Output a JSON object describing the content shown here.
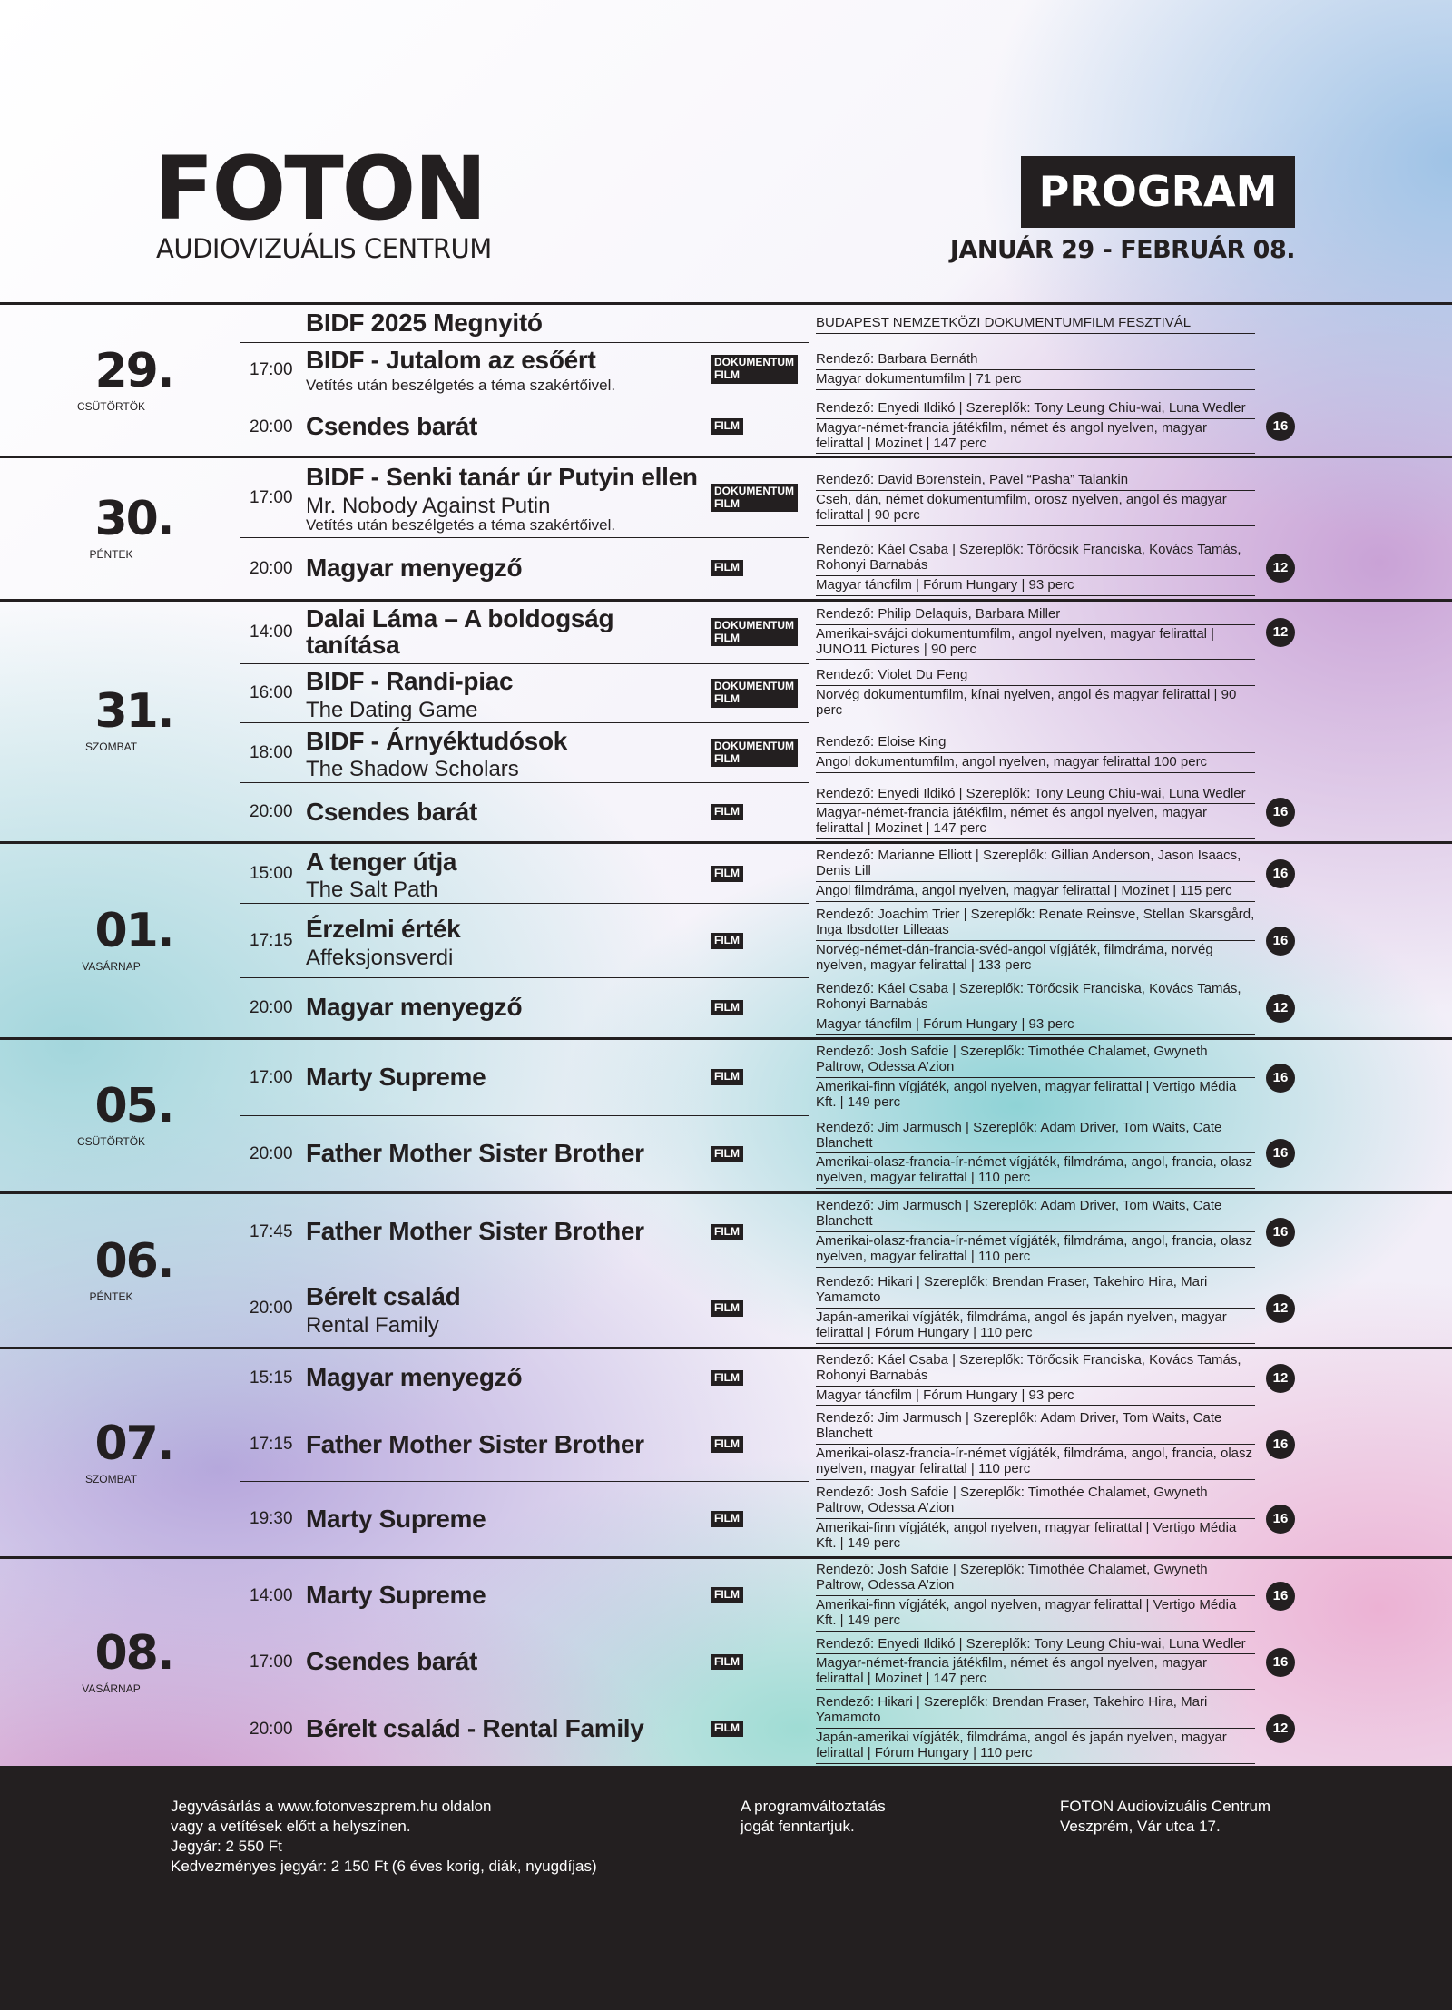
{
  "header": {
    "logo": "FOTON",
    "subtitle": "AUDIOVIZUÁLIS CENTRUM",
    "badge": "PROGRAM",
    "dates": "JANUÁR 29 - FEBRUÁR 08."
  },
  "days": [
    {
      "date": "29.",
      "weekday": "CSÜTÖRTÖK",
      "screenings": [
        {
          "title": "BIDF 2025 Megnyitó",
          "info": [
            "BUDAPEST NEMZETKÖZI DOKUMENTUMFILM FESZTIVÁL"
          ]
        },
        {
          "time": "17:00",
          "title": "BIDF - Jutalom az esőért",
          "note": "Vetítés után beszélgetés a téma szakértőivel.",
          "type": "DOKUMENTUM FILM",
          "info": [
            "Rendező: Barbara Bernáth",
            "Magyar dokumentumfilm | 71 perc"
          ]
        },
        {
          "time": "20:00",
          "title": "Csendes barát",
          "type": "FILM",
          "info": [
            "Rendező: Enyedi Ildikó | Szereplők: Tony Leung Chiu-wai, Luna Wedler",
            "Magyar-német-francia játékfilm, német és angol nyelven, magyar felirattal | Mozinet | 147 perc"
          ],
          "rating": "16"
        }
      ]
    },
    {
      "date": "30.",
      "weekday": "PÉNTEK",
      "screenings": [
        {
          "time": "17:00",
          "title": "BIDF - Senki tanár úr Putyin ellen",
          "subtitle": "Mr. Nobody Against Putin",
          "note": "Vetítés után beszélgetés a téma szakértőivel.",
          "type": "DOKUMENTUM FILM",
          "info": [
            "Rendező: David Borenstein, Pavel “Pasha” Talankin",
            "Cseh, dán, német dokumentumfilm, orosz nyelven, angol és magyar felirattal | 90 perc"
          ]
        },
        {
          "time": "20:00",
          "title": "Magyar menyegző",
          "type": "FILM",
          "info": [
            "Rendező: Káel Csaba | Szereplők: Törőcsik Franciska, Kovács Tamás, Rohonyi Barnabás",
            "Magyar táncfilm | Fórum Hungary | 93 perc"
          ],
          "rating": "12"
        }
      ]
    },
    {
      "date": "31.",
      "weekday": "SZOMBAT",
      "screenings": [
        {
          "time": "14:00",
          "title": "Dalai Láma – A boldogság tanítása",
          "type": "DOKUMENTUM FILM",
          "info": [
            "Rendező: Philip Delaquis, Barbara Miller",
            "Amerikai-svájci dokumentumfilm, angol nyelven, magyar felirattal | JUNO11 Pictures | 90 perc"
          ],
          "rating": "12"
        },
        {
          "time": "16:00",
          "title": "BIDF - Randi-piac",
          "subtitle": "The Dating Game",
          "type": "DOKUMENTUM FILM",
          "info": [
            "Rendező: Violet Du Feng",
            "Norvég dokumentumfilm, kínai nyelven, angol és magyar felirattal | 90 perc"
          ]
        },
        {
          "time": "18:00",
          "title": "BIDF - Árnyéktudósok",
          "subtitle": "The Shadow Scholars",
          "type": "DOKUMENTUM FILM",
          "info": [
            "Rendező: Eloise King",
            "Angol dokumentumfilm, angol nyelven, magyar felirattal 100 perc"
          ]
        },
        {
          "time": "20:00",
          "title": "Csendes barát",
          "type": "FILM",
          "info": [
            "Rendező: Enyedi Ildikó | Szereplők: Tony Leung Chiu-wai, Luna Wedler",
            "Magyar-német-francia játékfilm, német és angol nyelven, magyar felirattal | Mozinet | 147 perc"
          ],
          "rating": "16"
        }
      ]
    },
    {
      "date": "01.",
      "weekday": "VASÁRNAP",
      "screenings": [
        {
          "time": "15:00",
          "title": "A tenger útja",
          "subtitle": "The Salt Path",
          "type": "FILM",
          "info": [
            "Rendező: Marianne Elliott | Szereplők: Gillian Anderson, Jason Isaacs, Denis Lill",
            "Angol filmdráma, angol nyelven, magyar felirattal | Mozinet | 115 perc"
          ],
          "rating": "16"
        },
        {
          "time": "17:15",
          "title": "Érzelmi érték",
          "subtitle": "Affeksjonsverdi",
          "type": "FILM",
          "info": [
            "Rendező: Joachim Trier | Szereplők: Renate Reinsve, Stellan Skarsgård, Inga Ibsdotter Lilleaas",
            "Norvég-német-dán-francia-svéd-angol vígjáték, filmdráma, norvég nyelven, magyar felirattal | 133 perc"
          ],
          "rating": "16"
        },
        {
          "time": "20:00",
          "title": "Magyar menyegző",
          "type": "FILM",
          "info": [
            "Rendező: Káel Csaba | Szereplők: Törőcsik Franciska, Kovács Tamás, Rohonyi Barnabás",
            "Magyar táncfilm | Fórum Hungary | 93 perc"
          ],
          "rating": "12"
        }
      ]
    },
    {
      "date": "05.",
      "weekday": "CSÜTÖRTÖK",
      "screenings": [
        {
          "time": "17:00",
          "title": "Marty Supreme",
          "type": "FILM",
          "info": [
            "Rendező: Josh Safdie | Szereplők: Timothée Chalamet, Gwyneth Paltrow, Odessa A’zion",
            "Amerikai-finn vígjáték, angol nyelven, magyar felirattal | Vertigo Média Kft. | 149 perc"
          ],
          "rating": "16"
        },
        {
          "time": "20:00",
          "title": "Father Mother Sister Brother",
          "type": "FILM",
          "info": [
            "Rendező: Jim Jarmusch | Szereplők: Adam Driver, Tom Waits, Cate Blanchett",
            "Amerikai-olasz-francia-ír-német vígjáték, filmdráma, angol, francia, olasz nyelven, magyar felirattal | 110 perc"
          ],
          "rating": "16"
        }
      ]
    },
    {
      "date": "06.",
      "weekday": "PÉNTEK",
      "screenings": [
        {
          "time": "17:45",
          "title": "Father Mother Sister Brother",
          "type": "FILM",
          "info": [
            "Rendező: Jim Jarmusch | Szereplők: Adam Driver, Tom Waits, Cate Blanchett",
            "Amerikai-olasz-francia-ír-német vígjáték, filmdráma, angol, francia, olasz nyelven, magyar felirattal | 110 perc"
          ],
          "rating": "16"
        },
        {
          "time": "20:00",
          "title": "Bérelt család",
          "subtitle": "Rental Family",
          "type": "FILM",
          "info": [
            "Rendező: Hikari | Szereplők: Brendan Fraser, Takehiro Hira, Mari Yamamoto",
            "Japán-amerikai vígjáték, filmdráma, angol és japán nyelven, magyar felirattal | Fórum Hungary | 110 perc"
          ],
          "rating": "12"
        }
      ]
    },
    {
      "date": "07.",
      "weekday": "SZOMBAT",
      "screenings": [
        {
          "time": "15:15",
          "title": "Magyar menyegző",
          "type": "FILM",
          "info": [
            "Rendező: Káel Csaba | Szereplők: Törőcsik Franciska, Kovács Tamás, Rohonyi Barnabás",
            "Magyar táncfilm | Fórum Hungary | 93 perc"
          ],
          "rating": "12"
        },
        {
          "time": "17:15",
          "title": "Father Mother Sister Brother",
          "type": "FILM",
          "info": [
            "Rendező: Jim Jarmusch | Szereplők: Adam Driver, Tom Waits, Cate Blanchett",
            "Amerikai-olasz-francia-ír-német vígjáték, filmdráma, angol, francia, olasz nyelven, magyar felirattal | 110 perc"
          ],
          "rating": "16"
        },
        {
          "time": "19:30",
          "title": "Marty Supreme",
          "type": "FILM",
          "info": [
            "Rendező: Josh Safdie | Szereplők: Timothée Chalamet, Gwyneth Paltrow, Odessa A’zion",
            "Amerikai-finn vígjáték, angol nyelven, magyar felirattal | Vertigo Média Kft. | 149 perc"
          ],
          "rating": "16"
        }
      ]
    },
    {
      "date": "08.",
      "weekday": "VASÁRNAP",
      "screenings": [
        {
          "time": "14:00",
          "title": "Marty Supreme",
          "type": "FILM",
          "info": [
            "Rendező: Josh Safdie | Szereplők: Timothée Chalamet, Gwyneth Paltrow, Odessa A’zion",
            "Amerikai-finn vígjáték, angol nyelven, magyar felirattal | Vertigo Média Kft. | 149 perc"
          ],
          "rating": "16"
        },
        {
          "time": "17:00",
          "title": "Csendes barát",
          "type": "FILM",
          "info": [
            "Rendező: Enyedi Ildikó | Szereplők: Tony Leung Chiu-wai, Luna Wedler",
            "Magyar-német-francia játékfilm, német és angol nyelven, magyar felirattal | Mozinet | 147 perc"
          ],
          "rating": "16"
        },
        {
          "time": "20:00",
          "title": "Bérelt család - Rental Family",
          "type": "FILM",
          "info": [
            "Rendező: Hikari | Szereplők: Brendan Fraser, Takehiro Hira, Mari Yamamoto",
            "Japán-amerikai vígjáték, filmdráma, angol és japán nyelven, magyar felirattal | Fórum Hungary | 110 perc"
          ],
          "rating": "12"
        }
      ]
    }
  ],
  "footer": {
    "columns": [
      [
        "Jegyvásárlás a www.fotonveszprem.hu oldalon",
        "vagy a vetítések előtt a helyszínen.",
        "Jegyár: 2 550 Ft",
        "Kedvezményes jegyár: 2 150 Ft (6 éves korig, diák, nyugdíjas)"
      ],
      [
        "A programváltoztatás",
        "jogát fenntartjuk."
      ],
      [
        "FOTON Audiovizuális Centrum",
        "Veszprém, Vár utca 17."
      ]
    ]
  }
}
